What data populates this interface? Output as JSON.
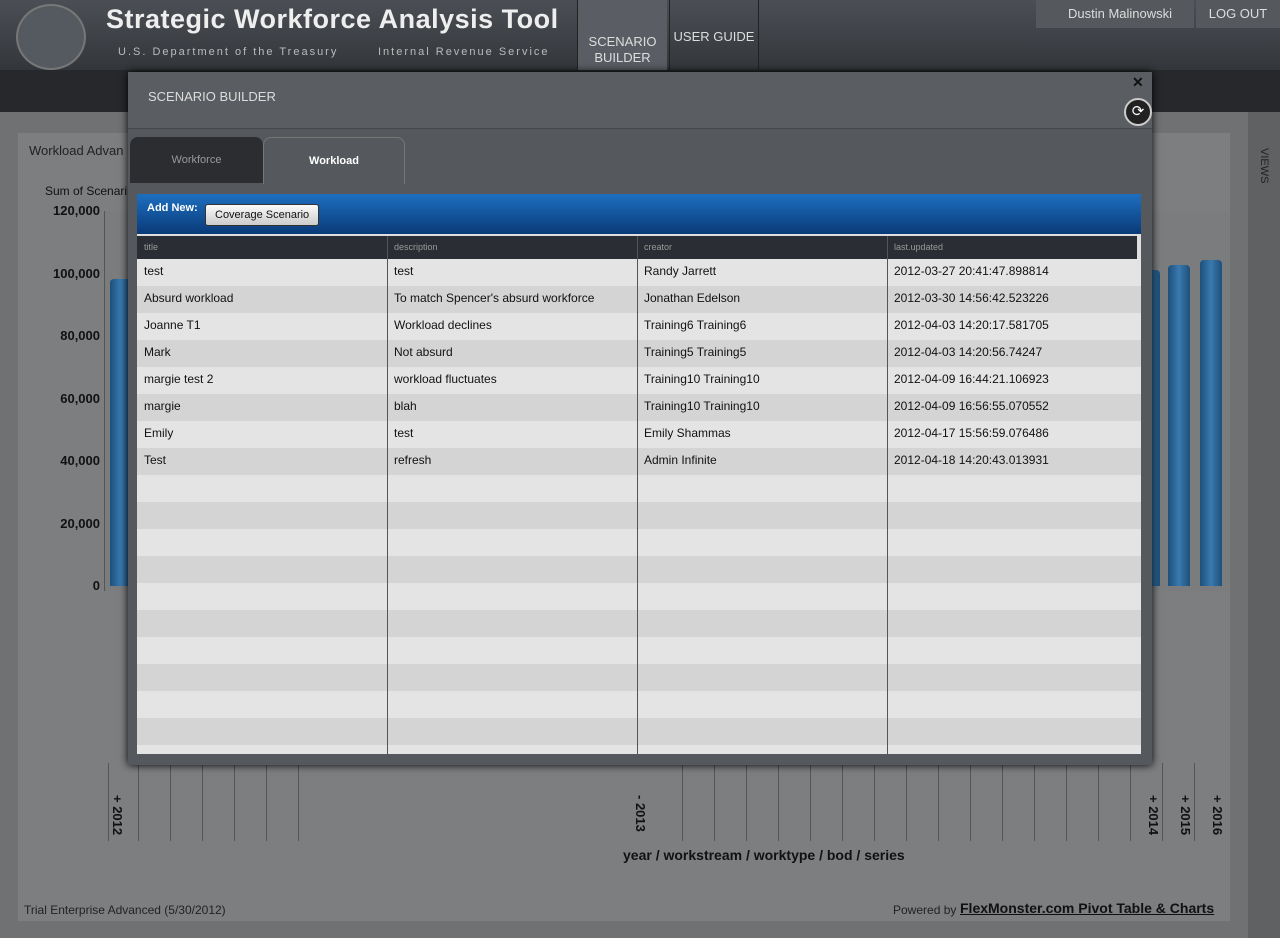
{
  "header": {
    "title": "Strategic Workforce Analysis Tool",
    "subtitle_left": "U.S. Department of the Treasury",
    "subtitle_right": "Internal Revenue Service",
    "nav": [
      "SCENARIO BUILDER",
      "USER GUIDE"
    ],
    "user": "Dustin Malinowski",
    "logout": "LOG OUT"
  },
  "background": {
    "panel_title": "Workload Advan",
    "measure": "Sum of Scenari",
    "yticks": [
      "120,000",
      "100,000",
      "80,000",
      "60,000",
      "40,000",
      "20,000",
      "0"
    ],
    "xlabels": [
      "+ 2012",
      "- 2013",
      "+ 2014",
      "+ 2015",
      "+ 2016"
    ],
    "axis_title": "year / workstream / worktype / bod / series",
    "side_label": "VIEWS",
    "footer_left": "Trial Enterprise Advanced (5/30/2012)",
    "footer_powered": "Powered by",
    "footer_link": "FlexMonster.com Pivot Table & Charts"
  },
  "modal": {
    "title": "SCENARIO BUILDER",
    "tabs": [
      "Workforce",
      "Workload"
    ],
    "add_new": "Add New:",
    "button": "Coverage Scenario",
    "table": {
      "columns": [
        "title",
        "description",
        "creator",
        "last.updated"
      ],
      "rows": [
        [
          "test",
          "test",
          "Randy Jarrett",
          "2012-03-27 20:41:47.898814"
        ],
        [
          "Absurd workload",
          "To match Spencer's absurd workforce",
          "Jonathan Edelson",
          "2012-03-30 14:56:42.523226"
        ],
        [
          "Joanne T1",
          "Workload declines",
          "Training6 Training6",
          "2012-04-03 14:20:17.581705"
        ],
        [
          "Mark",
          "Not absurd",
          "Training5 Training5",
          "2012-04-03 14:20:56.74247"
        ],
        [
          "margie test 2",
          "workload fluctuates",
          "Training10 Training10",
          "2012-04-09 16:44:21.106923"
        ],
        [
          "margie",
          "blah",
          "Training10 Training10",
          "2012-04-09 16:56:55.070552"
        ],
        [
          "Emily",
          "test",
          "Emily Shammas",
          "2012-04-17 15:56:59.076486"
        ],
        [
          "Test",
          "refresh",
          "Admin Infinite",
          "2012-04-18 14:20:43.013931"
        ]
      ]
    }
  }
}
